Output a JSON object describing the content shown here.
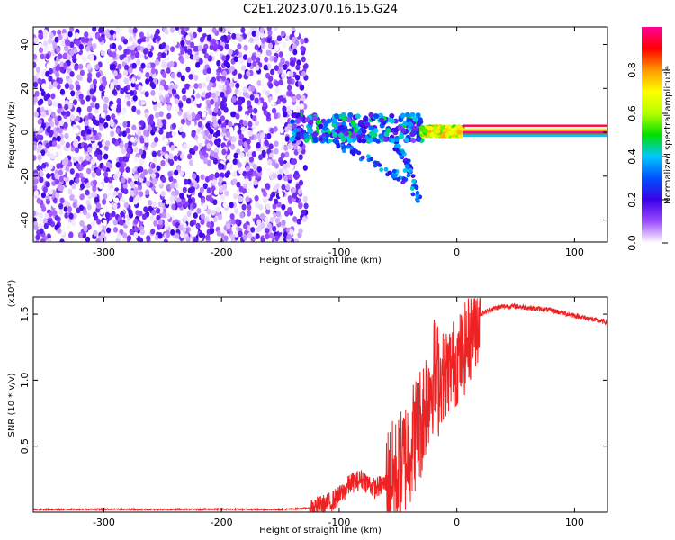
{
  "title": "C2E1.2023.070.16.15.G24",
  "chart_data": [
    {
      "type": "heatmap",
      "xlabel": "Height of straight line (km)",
      "ylabel": "Frequency (Hz)",
      "xlim": [
        -360,
        128
      ],
      "ylim": [
        -50,
        48
      ],
      "xticks": [
        -300,
        -200,
        -100,
        0,
        100
      ],
      "xtick_labels": [
        "-300",
        "-200",
        "-100",
        "0",
        "100"
      ],
      "yticks": [
        -40,
        -20,
        0,
        20,
        40
      ],
      "ytick_labels": [
        "-40",
        "-20",
        "0",
        "20",
        "40"
      ],
      "colorbar": {
        "label": "Normalized spectral amplitude",
        "range": [
          0,
          1
        ],
        "ticks": [
          0.0,
          0.2,
          0.4,
          0.6,
          0.8
        ],
        "tick_labels": [
          "0.0",
          "0.2",
          "0.4",
          "0.6",
          "0.8"
        ],
        "colors": [
          "#ffffff",
          "#9b4cff",
          "#3a00e6",
          "#0050ff",
          "#00c8ff",
          "#00e000",
          "#b4ff00",
          "#ffff00",
          "#ff9900",
          "#ff0000",
          "#ff0099"
        ]
      },
      "regions": [
        {
          "x_range": [
            -360,
            -128
          ],
          "y_range": [
            -50,
            48
          ],
          "level_range": [
            0.0,
            0.2
          ],
          "pattern": "noise"
        },
        {
          "x_range": [
            -140,
            -30
          ],
          "center_hz": 2,
          "spread_hz": 6,
          "level_range": [
            0.1,
            0.5
          ],
          "pattern": "scattered"
        },
        {
          "x_range": [
            -30,
            5
          ],
          "center_hz": 0.5,
          "spread_hz": 2,
          "level_range": [
            0.5,
            0.8
          ],
          "pattern": "scattered"
        },
        {
          "x_range": [
            5,
            128
          ],
          "center_hz": 0,
          "spread_hz": 2,
          "level_range": [
            0.9,
            1.0
          ],
          "pattern": "band"
        }
      ],
      "tails": [
        {
          "x": [
            -115,
            -75,
            -45
          ],
          "y": [
            -2,
            -12,
            -22
          ]
        },
        {
          "x": [
            -55,
            -42,
            -32
          ],
          "y": [
            -3,
            -15,
            -32
          ]
        }
      ]
    },
    {
      "type": "line",
      "xlabel": "Height of straight line (km)",
      "ylabel": "SNR (10 * v/v)",
      "y_scale_label": "(x10⁴)",
      "xlim": [
        -360,
        128
      ],
      "ylim": [
        0,
        1.63
      ],
      "xticks": [
        -300,
        -200,
        -100,
        0,
        100
      ],
      "xtick_labels": [
        "-300",
        "-200",
        "-100",
        "0",
        "100"
      ],
      "yticks": [
        0.5,
        1.0,
        1.5
      ],
      "ytick_labels": [
        "0.5",
        "1.0",
        "1.5"
      ],
      "color": "#ee2222",
      "series": [
        {
          "x": [
            -360,
            -300,
            -250,
            -200,
            -150,
            -125,
            -110,
            -100,
            -90,
            -80,
            -70,
            -60,
            -50,
            -40,
            -30,
            -25,
            -20,
            -15,
            -10,
            -5,
            0,
            5,
            10,
            15,
            20,
            30,
            40,
            50,
            60,
            70,
            80,
            90,
            100,
            110,
            120,
            128
          ],
          "y": [
            0.02,
            0.022,
            0.02,
            0.022,
            0.02,
            0.03,
            0.06,
            0.12,
            0.22,
            0.25,
            0.18,
            0.22,
            0.28,
            0.5,
            0.7,
            0.9,
            1.05,
            1.0,
            1.05,
            1.1,
            1.15,
            1.2,
            1.3,
            1.42,
            1.5,
            1.54,
            1.56,
            1.56,
            1.55,
            1.54,
            1.53,
            1.51,
            1.49,
            1.47,
            1.45,
            1.44
          ]
        }
      ]
    }
  ]
}
